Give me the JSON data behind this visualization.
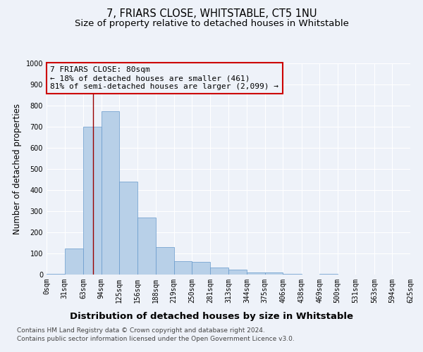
{
  "title": "7, FRIARS CLOSE, WHITSTABLE, CT5 1NU",
  "subtitle": "Size of property relative to detached houses in Whitstable",
  "xlabel": "Distribution of detached houses by size in Whitstable",
  "ylabel": "Number of detached properties",
  "footnote1": "Contains HM Land Registry data © Crown copyright and database right 2024.",
  "footnote2": "Contains public sector information licensed under the Open Government Licence v3.0.",
  "annotation_line1": "7 FRIARS CLOSE: 80sqm",
  "annotation_line2": "← 18% of detached houses are smaller (461)",
  "annotation_line3": "81% of semi-detached houses are larger (2,099) →",
  "property_sqm": 80,
  "bin_edges": [
    0,
    31,
    63,
    94,
    125,
    156,
    188,
    219,
    250,
    281,
    313,
    344,
    375,
    406,
    438,
    469,
    500,
    531,
    563,
    594,
    625
  ],
  "bar_values": [
    5,
    125,
    700,
    775,
    440,
    270,
    130,
    65,
    60,
    35,
    25,
    10,
    10,
    5,
    0,
    5,
    0,
    0,
    0,
    0
  ],
  "bar_color": "#b8d0e8",
  "bar_edge_color": "#6699cc",
  "vline_color": "#990000",
  "vline_x": 80,
  "ylim": [
    0,
    1000
  ],
  "yticks": [
    0,
    100,
    200,
    300,
    400,
    500,
    600,
    700,
    800,
    900,
    1000
  ],
  "bg_color": "#eef2f9",
  "annotation_box_edge": "#cc0000",
  "title_fontsize": 10.5,
  "subtitle_fontsize": 9.5,
  "xlabel_fontsize": 9.5,
  "ylabel_fontsize": 8.5,
  "tick_fontsize": 7,
  "annotation_fontsize": 8,
  "footnote_fontsize": 6.5
}
